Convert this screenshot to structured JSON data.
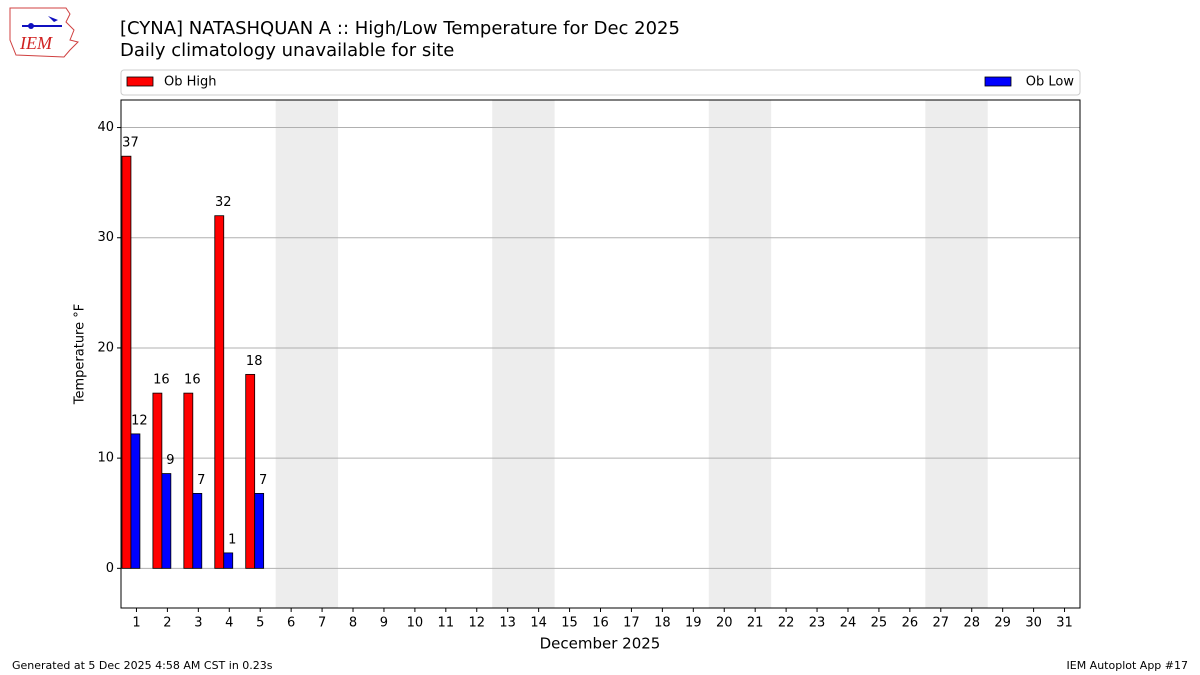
{
  "chart_data": {
    "type": "bar",
    "title": "[CYNA] NATASHQUAN A :: High/Low Temperature for Dec 2025",
    "subtitle": "Daily climatology unavailable for site",
    "logo": "IEM",
    "x_label": "December 2025",
    "y_label": "Temperature °F",
    "footer_left": "Generated at 5 Dec 2025 4:58 AM CST in 0.23s",
    "footer_right": "IEM Autoplot App #17",
    "categories": [
      "1",
      "2",
      "3",
      "4",
      "5",
      "6",
      "7",
      "8",
      "9",
      "10",
      "11",
      "12",
      "13",
      "14",
      "15",
      "16",
      "17",
      "18",
      "19",
      "20",
      "21",
      "22",
      "23",
      "24",
      "25",
      "26",
      "27",
      "28",
      "29",
      "30",
      "31"
    ],
    "series": [
      {
        "name": "Ob High",
        "color": "#ff0000",
        "values": [
          37.4,
          15.9,
          15.9,
          32.0,
          17.6,
          null,
          null,
          null,
          null,
          null,
          null,
          null,
          null,
          null,
          null,
          null,
          null,
          null,
          null,
          null,
          null,
          null,
          null,
          null,
          null,
          null,
          null,
          null,
          null,
          null,
          null
        ],
        "value_labels": [
          "37",
          "16",
          "16",
          "32",
          "18",
          null,
          null,
          null,
          null,
          null,
          null,
          null,
          null,
          null,
          null,
          null,
          null,
          null,
          null,
          null,
          null,
          null,
          null,
          null,
          null,
          null,
          null,
          null,
          null,
          null,
          null
        ]
      },
      {
        "name": "Ob Low",
        "color": "#0000ff",
        "values": [
          12.2,
          8.6,
          6.8,
          1.4,
          6.8,
          null,
          null,
          null,
          null,
          null,
          null,
          null,
          null,
          null,
          null,
          null,
          null,
          null,
          null,
          null,
          null,
          null,
          null,
          null,
          null,
          null,
          null,
          null,
          null,
          null,
          null
        ],
        "value_labels": [
          "12",
          "9",
          "7",
          "1",
          "7",
          null,
          null,
          null,
          null,
          null,
          null,
          null,
          null,
          null,
          null,
          null,
          null,
          null,
          null,
          null,
          null,
          null,
          null,
          null,
          null,
          null,
          null,
          null,
          null,
          null,
          null
        ]
      }
    ],
    "shaded_categories": [
      "6",
      "7",
      "13",
      "14",
      "20",
      "21",
      "27",
      "28"
    ],
    "shade_color": "#ededed",
    "ylim": [
      -3.6,
      42.5
    ],
    "yticks": [
      0,
      10,
      20,
      30,
      40
    ],
    "grid": true
  }
}
